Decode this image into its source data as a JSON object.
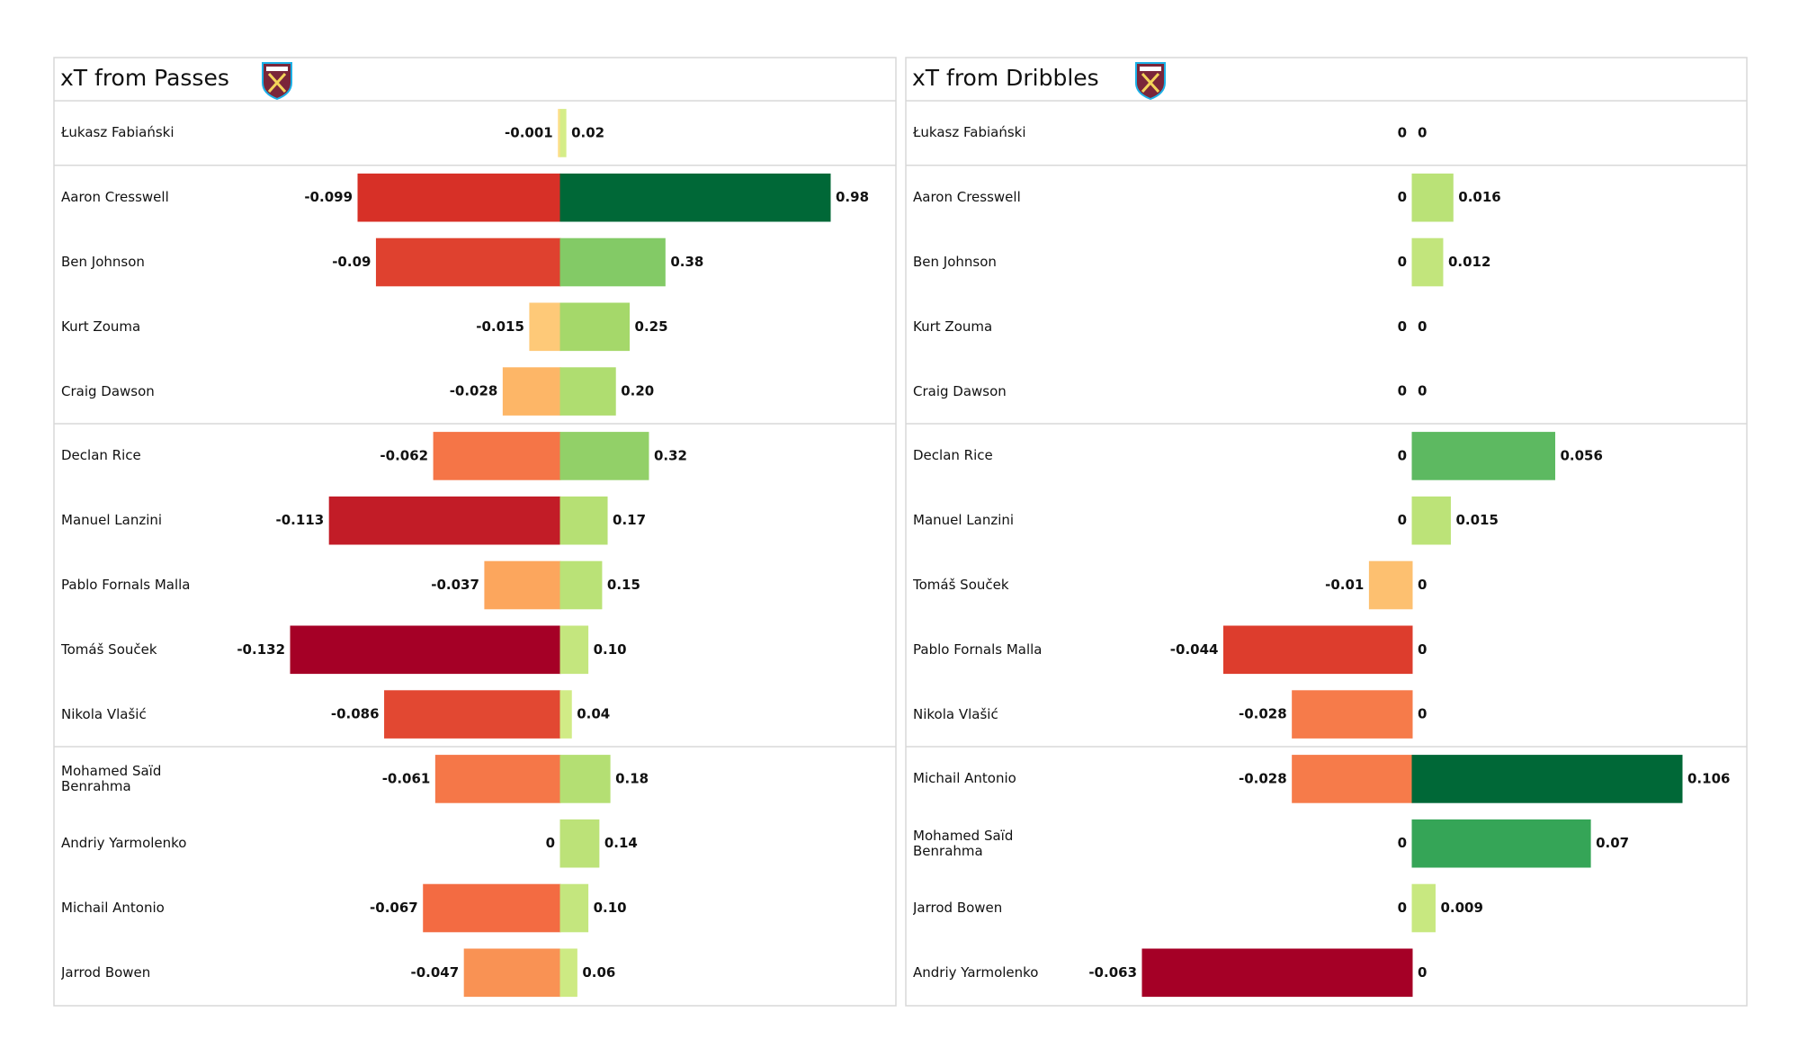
{
  "chart_data": [
    {
      "type": "diverging-bar",
      "title": "xT from Passes",
      "categories": [
        "Łukasz Fabiański",
        "Aaron Cresswell",
        "Ben Johnson",
        "Kurt Zouma",
        "Craig Dawson",
        "Declan Rice",
        "Manuel Lanzini",
        "Pablo Fornals Malla",
        "Tomáš Souček",
        "Nikola Vlašić",
        "Mohamed Saïd Benrahma",
        "Andriy Yarmolenko",
        "Michail Antonio",
        "Jarrod Bowen"
      ],
      "series": [
        {
          "values": [
            -0.001,
            -0.099,
            -0.09,
            -0.015,
            -0.028,
            -0.062,
            -0.113,
            -0.037,
            -0.132,
            -0.086,
            -0.061,
            0,
            -0.067,
            -0.047
          ]
        },
        {
          "values": [
            0.02,
            0.98,
            0.38,
            0.25,
            0.2,
            0.32,
            0.17,
            0.15,
            0.1,
            0.04,
            0.18,
            0.14,
            0.1,
            0.06
          ],
          "value_labels": [
            "0.02",
            "0.98",
            "0.38",
            "0.25",
            "0.20",
            "0.32",
            "0.17",
            "0.15",
            "0.10",
            "0.04",
            "0.18",
            "0.14",
            "0.10",
            "0.06"
          ]
        }
      ]
    },
    {
      "type": "diverging-bar",
      "title": "xT from Dribbles",
      "categories": [
        "Łukasz Fabiański",
        "Aaron Cresswell",
        "Ben Johnson",
        "Kurt Zouma",
        "Craig Dawson",
        "Declan Rice",
        "Manuel Lanzini",
        "Tomáš Souček",
        "Pablo Fornals Malla",
        "Nikola Vlašić",
        "Michail Antonio",
        "Mohamed Saïd Benrahma",
        "Jarrod Bowen",
        "Andriy Yarmolenko"
      ],
      "series": [
        {
          "values": [
            0,
            0,
            0,
            0,
            0,
            0,
            0,
            -0.01,
            -0.044,
            -0.028,
            -0.028,
            0,
            0,
            -0.063
          ]
        },
        {
          "values": [
            0,
            0.016,
            0.012,
            0,
            0,
            0.056,
            0.015,
            0,
            0,
            0,
            0.106,
            0.07,
            0.009,
            0
          ]
        }
      ]
    }
  ]
}
